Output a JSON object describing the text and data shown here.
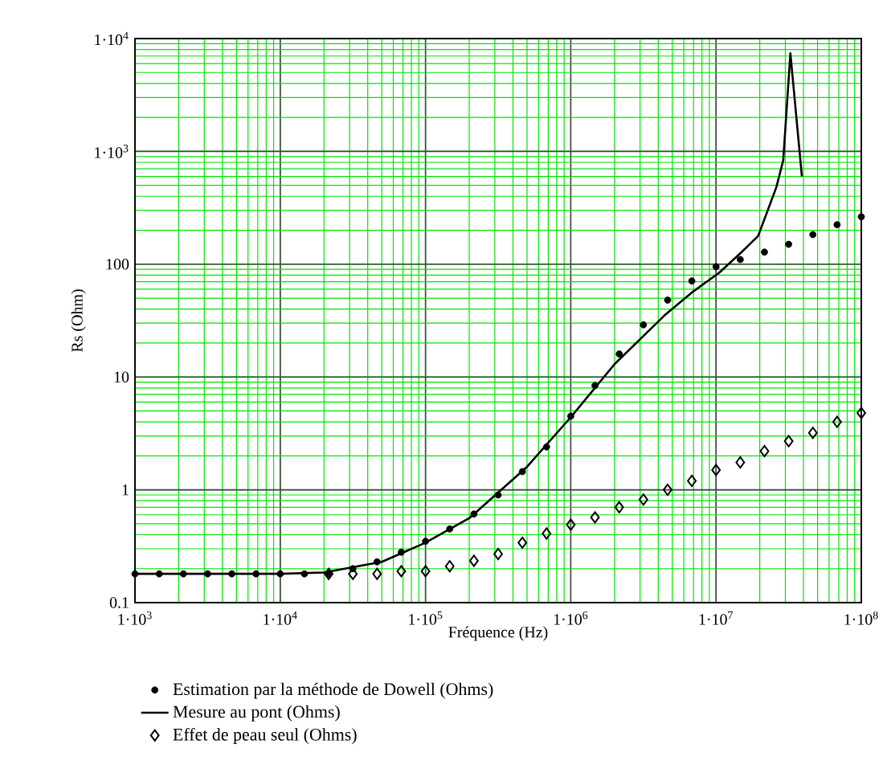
{
  "chart_data": {
    "type": "scatter",
    "xlabel": "Fréquence (Hz)",
    "ylabel": "Rs (Ohm)",
    "log": "xy",
    "grid": true,
    "legend": "bottom",
    "xlim": [
      1000,
      100000000
    ],
    "ylim": [
      0.1,
      10000
    ],
    "xticks": [
      {
        "value": 1000,
        "label": "1·10$^{3}$"
      },
      {
        "value": 10000,
        "label": "1·10$^{4}$"
      },
      {
        "value": 100000,
        "label": "1·10$^{5}$"
      },
      {
        "value": 1000000,
        "label": "1·10$^{6}$"
      },
      {
        "value": 10000000,
        "label": "1·10$^{7}$"
      },
      {
        "value": 100000000,
        "label": "1·10$^{8}$"
      }
    ],
    "yticks": [
      0.1,
      1,
      10,
      100,
      {
        "value": 1000,
        "label": "1·10$^{3}$"
      },
      {
        "value": 10000,
        "label": "1·10$^{4}$"
      }
    ],
    "series": [
      {
        "name": "Estimation par la méthode de Dowell (Ohms)",
        "marker": "circle",
        "color": "#000000",
        "x": [
          1000,
          1468,
          2154,
          3162,
          4642,
          6813,
          10000,
          14678,
          21544,
          31623,
          46416,
          68129,
          100000,
          146780,
          215440,
          316230,
          464160,
          681290,
          1000000,
          1467800,
          2154400,
          3162300,
          4641600,
          6812900,
          10000000,
          14678000,
          21544000,
          31623000,
          46416000,
          68129000,
          100000000
        ],
        "values": [
          0.18,
          0.18,
          0.18,
          0.18,
          0.18,
          0.18,
          0.18,
          0.18,
          0.18,
          0.2,
          0.23,
          0.28,
          0.35,
          0.45,
          0.61,
          0.9,
          1.45,
          2.4,
          4.5,
          8.4,
          16,
          29,
          48,
          71,
          95,
          110,
          128,
          150,
          183,
          224,
          263
        ]
      },
      {
        "name": "Mesure au pont (Ohms)",
        "type": "line",
        "marker": "none",
        "line_style": "solid",
        "color": "#000000",
        "x": [
          1000,
          10000,
          20000,
          50000,
          100000,
          200000,
          500000,
          1000000,
          2000000,
          4400000,
          6800000,
          10500000,
          15000000,
          19500000,
          26000000,
          29000000,
          32500000,
          39000000
        ],
        "values": [
          0.18,
          0.18,
          0.185,
          0.23,
          0.34,
          0.56,
          1.6,
          4.4,
          13,
          35,
          56,
          84,
          128,
          178,
          480,
          830,
          7400,
          600
        ]
      },
      {
        "name": "Effet de peau seul (Ohms)",
        "marker": "diamond",
        "color": "#000000",
        "x": [
          21544,
          31623,
          46416,
          68129,
          100000,
          146780,
          215440,
          316230,
          464160,
          681290,
          1000000,
          1467800,
          2154400,
          3162300,
          4641600,
          6812900,
          10000000,
          14678000,
          21544000,
          31623000,
          46416000,
          68129000,
          100000000
        ],
        "values": [
          0.18,
          0.18,
          0.18,
          0.19,
          0.19,
          0.21,
          0.235,
          0.27,
          0.34,
          0.41,
          0.49,
          0.57,
          0.7,
          0.82,
          1.0,
          1.2,
          1.5,
          1.75,
          2.2,
          2.7,
          3.2,
          4.0,
          4.8
        ]
      }
    ]
  }
}
